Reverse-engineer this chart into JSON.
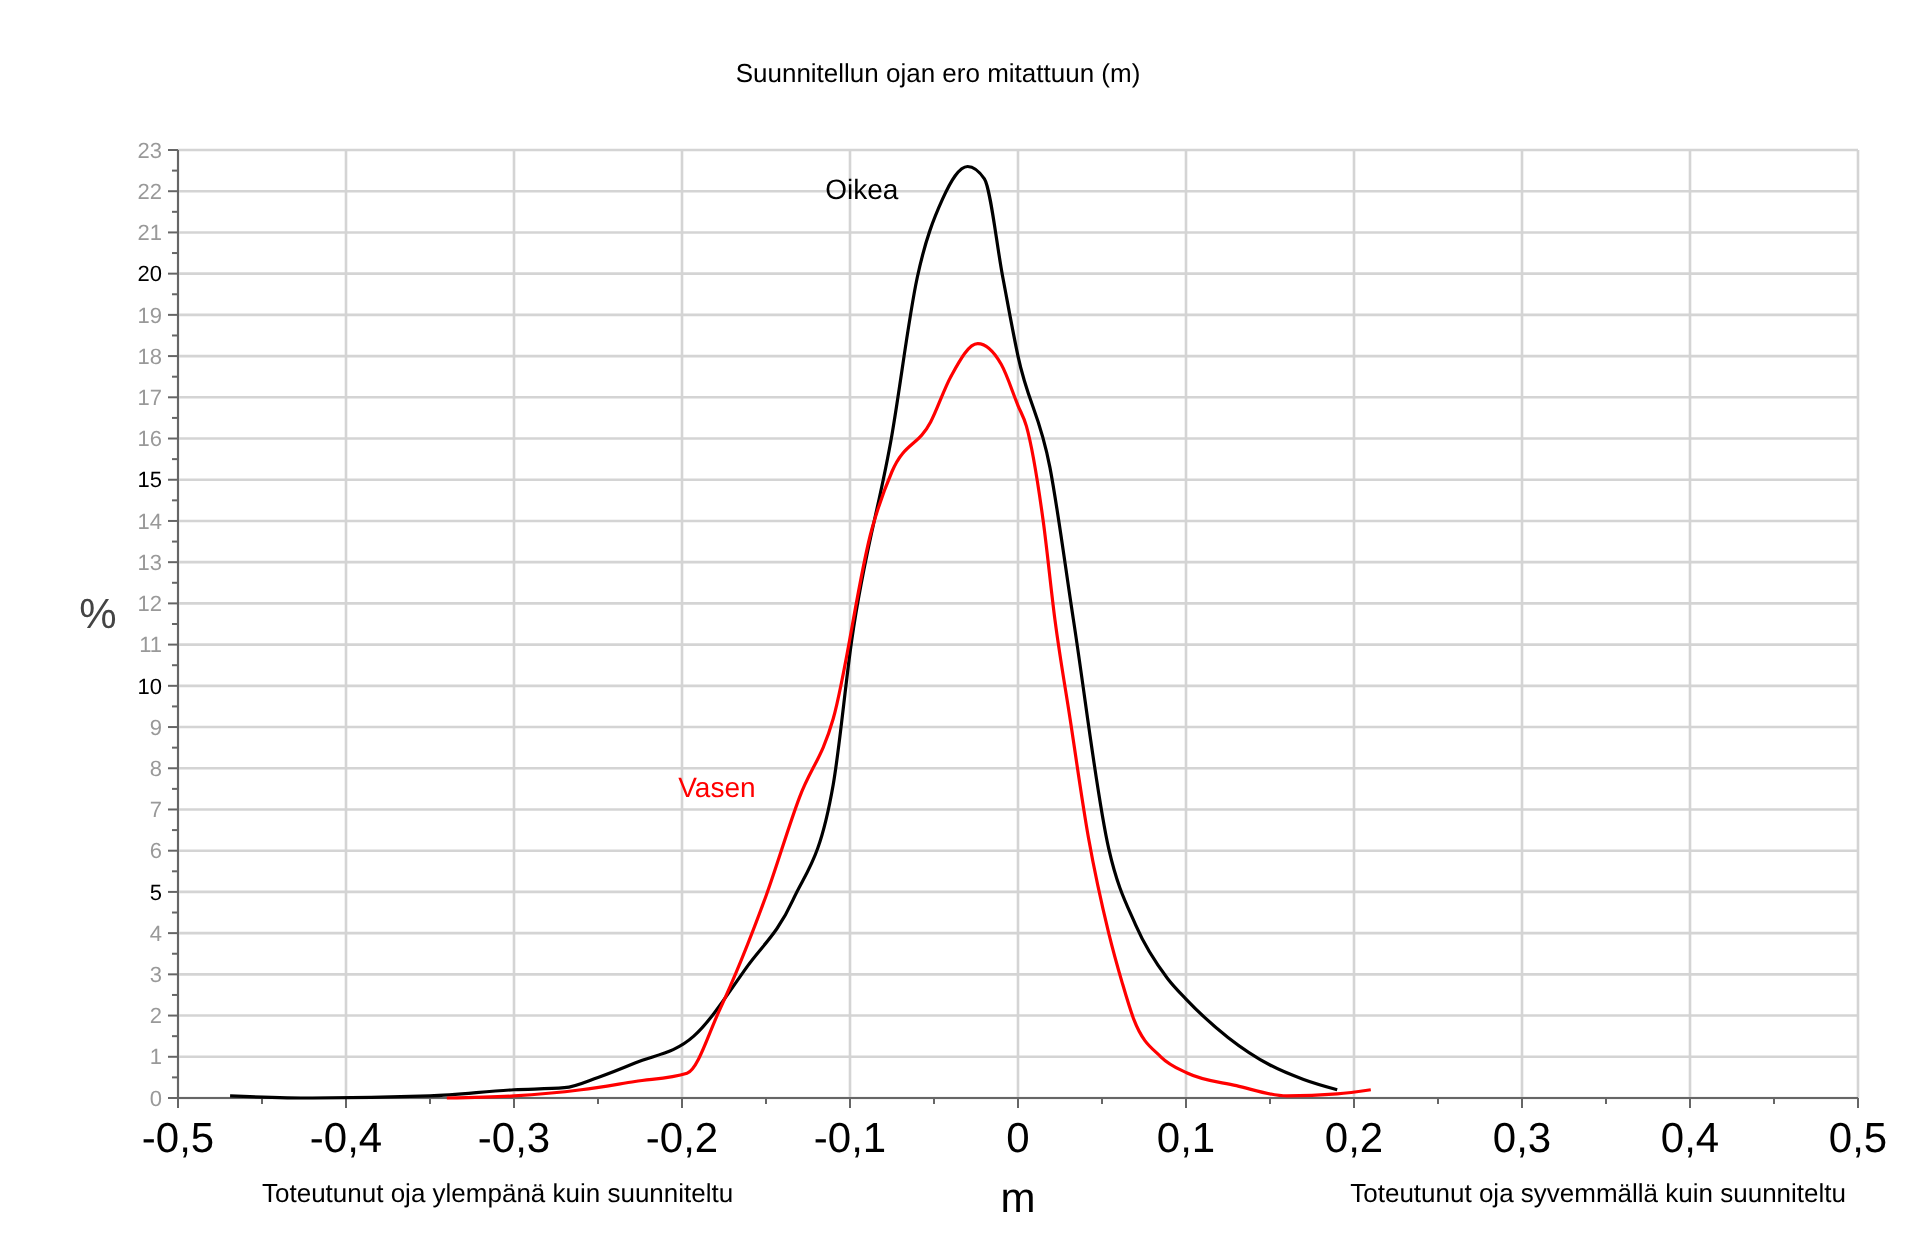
{
  "chart_data": {
    "type": "line",
    "title": "Suunnitellun ojan ero mitattuun (m)",
    "xlabel": "m",
    "ylabel": "%",
    "xlim": [
      -0.5,
      0.5
    ],
    "xticks": [
      {
        "value": -0.5,
        "label": "-0,5"
      },
      {
        "value": -0.4,
        "label": "-0,4"
      },
      {
        "value": -0.3,
        "label": "-0,3"
      },
      {
        "value": -0.2,
        "label": "-0,2"
      },
      {
        "value": -0.1,
        "label": "-0,1"
      },
      {
        "value": 0,
        "label": "0"
      },
      {
        "value": 0.1,
        "label": "0,1"
      },
      {
        "value": 0.2,
        "label": "0,2"
      },
      {
        "value": 0.3,
        "label": "0,3"
      },
      {
        "value": 0.4,
        "label": "0,4"
      },
      {
        "value": 0.5,
        "label": "0,5"
      }
    ],
    "ylim": [
      0,
      23
    ],
    "yticks": [
      0,
      1,
      2,
      3,
      4,
      5,
      6,
      7,
      8,
      9,
      10,
      11,
      12,
      13,
      14,
      15,
      16,
      17,
      18,
      19,
      20,
      21,
      22,
      23
    ],
    "grid": true,
    "marker": "none",
    "line_style": "solid",
    "series": [
      {
        "name": "Oikea",
        "color": "#000000",
        "x": [
          -0.469,
          -0.42,
          -0.35,
          -0.3,
          -0.27,
          -0.25,
          -0.228,
          -0.193,
          -0.161,
          -0.134,
          -0.11,
          -0.099,
          -0.075,
          -0.06,
          -0.045,
          -0.03,
          -0.02,
          -0.009,
          0,
          0.019,
          0.033,
          0.054,
          0.07,
          0.089,
          0.1,
          0.125,
          0.15,
          0.17,
          0.19
        ],
        "values": [
          0.05,
          0,
          0.05,
          0.2,
          0.25,
          0.5,
          0.85,
          1.5,
          3.2,
          4.8,
          7.6,
          11.1,
          16.1,
          19.9,
          21.8,
          22.6,
          22.3,
          19.9,
          18,
          15.3,
          11.6,
          6.05,
          4.2,
          2.9,
          2.4,
          1.47,
          0.8,
          0.45,
          0.2
        ]
      },
      {
        "name": "Vasen",
        "color": "#ff0000",
        "x": [
          -0.34,
          -0.3,
          -0.26,
          -0.228,
          -0.197,
          -0.178,
          -0.15,
          -0.13,
          -0.11,
          -0.087,
          -0.075,
          -0.052,
          -0.04,
          -0.024,
          -0.01,
          0,
          0.005,
          0.015,
          0.022,
          0.031,
          0.042,
          0.054,
          0.062,
          0.069,
          0.085,
          0.101,
          0.13,
          0.16,
          0.19,
          0.21
        ],
        "values": [
          0,
          0.05,
          0.2,
          0.4,
          0.6,
          2.1,
          4.9,
          7.3,
          9.2,
          13.8,
          15.2,
          16.4,
          17.5,
          18.3,
          17.8,
          16.8,
          16.3,
          14,
          11.6,
          9.2,
          6.3,
          4,
          2.8,
          1.9,
          1,
          0.6,
          0.3,
          0.05,
          0.1,
          0.2
        ]
      }
    ],
    "annotations": [
      "Toteutunut oja ylempänä kuin suunniteltu",
      "Toteutunut oja syvemmällä kuin suunniteltu"
    ]
  }
}
